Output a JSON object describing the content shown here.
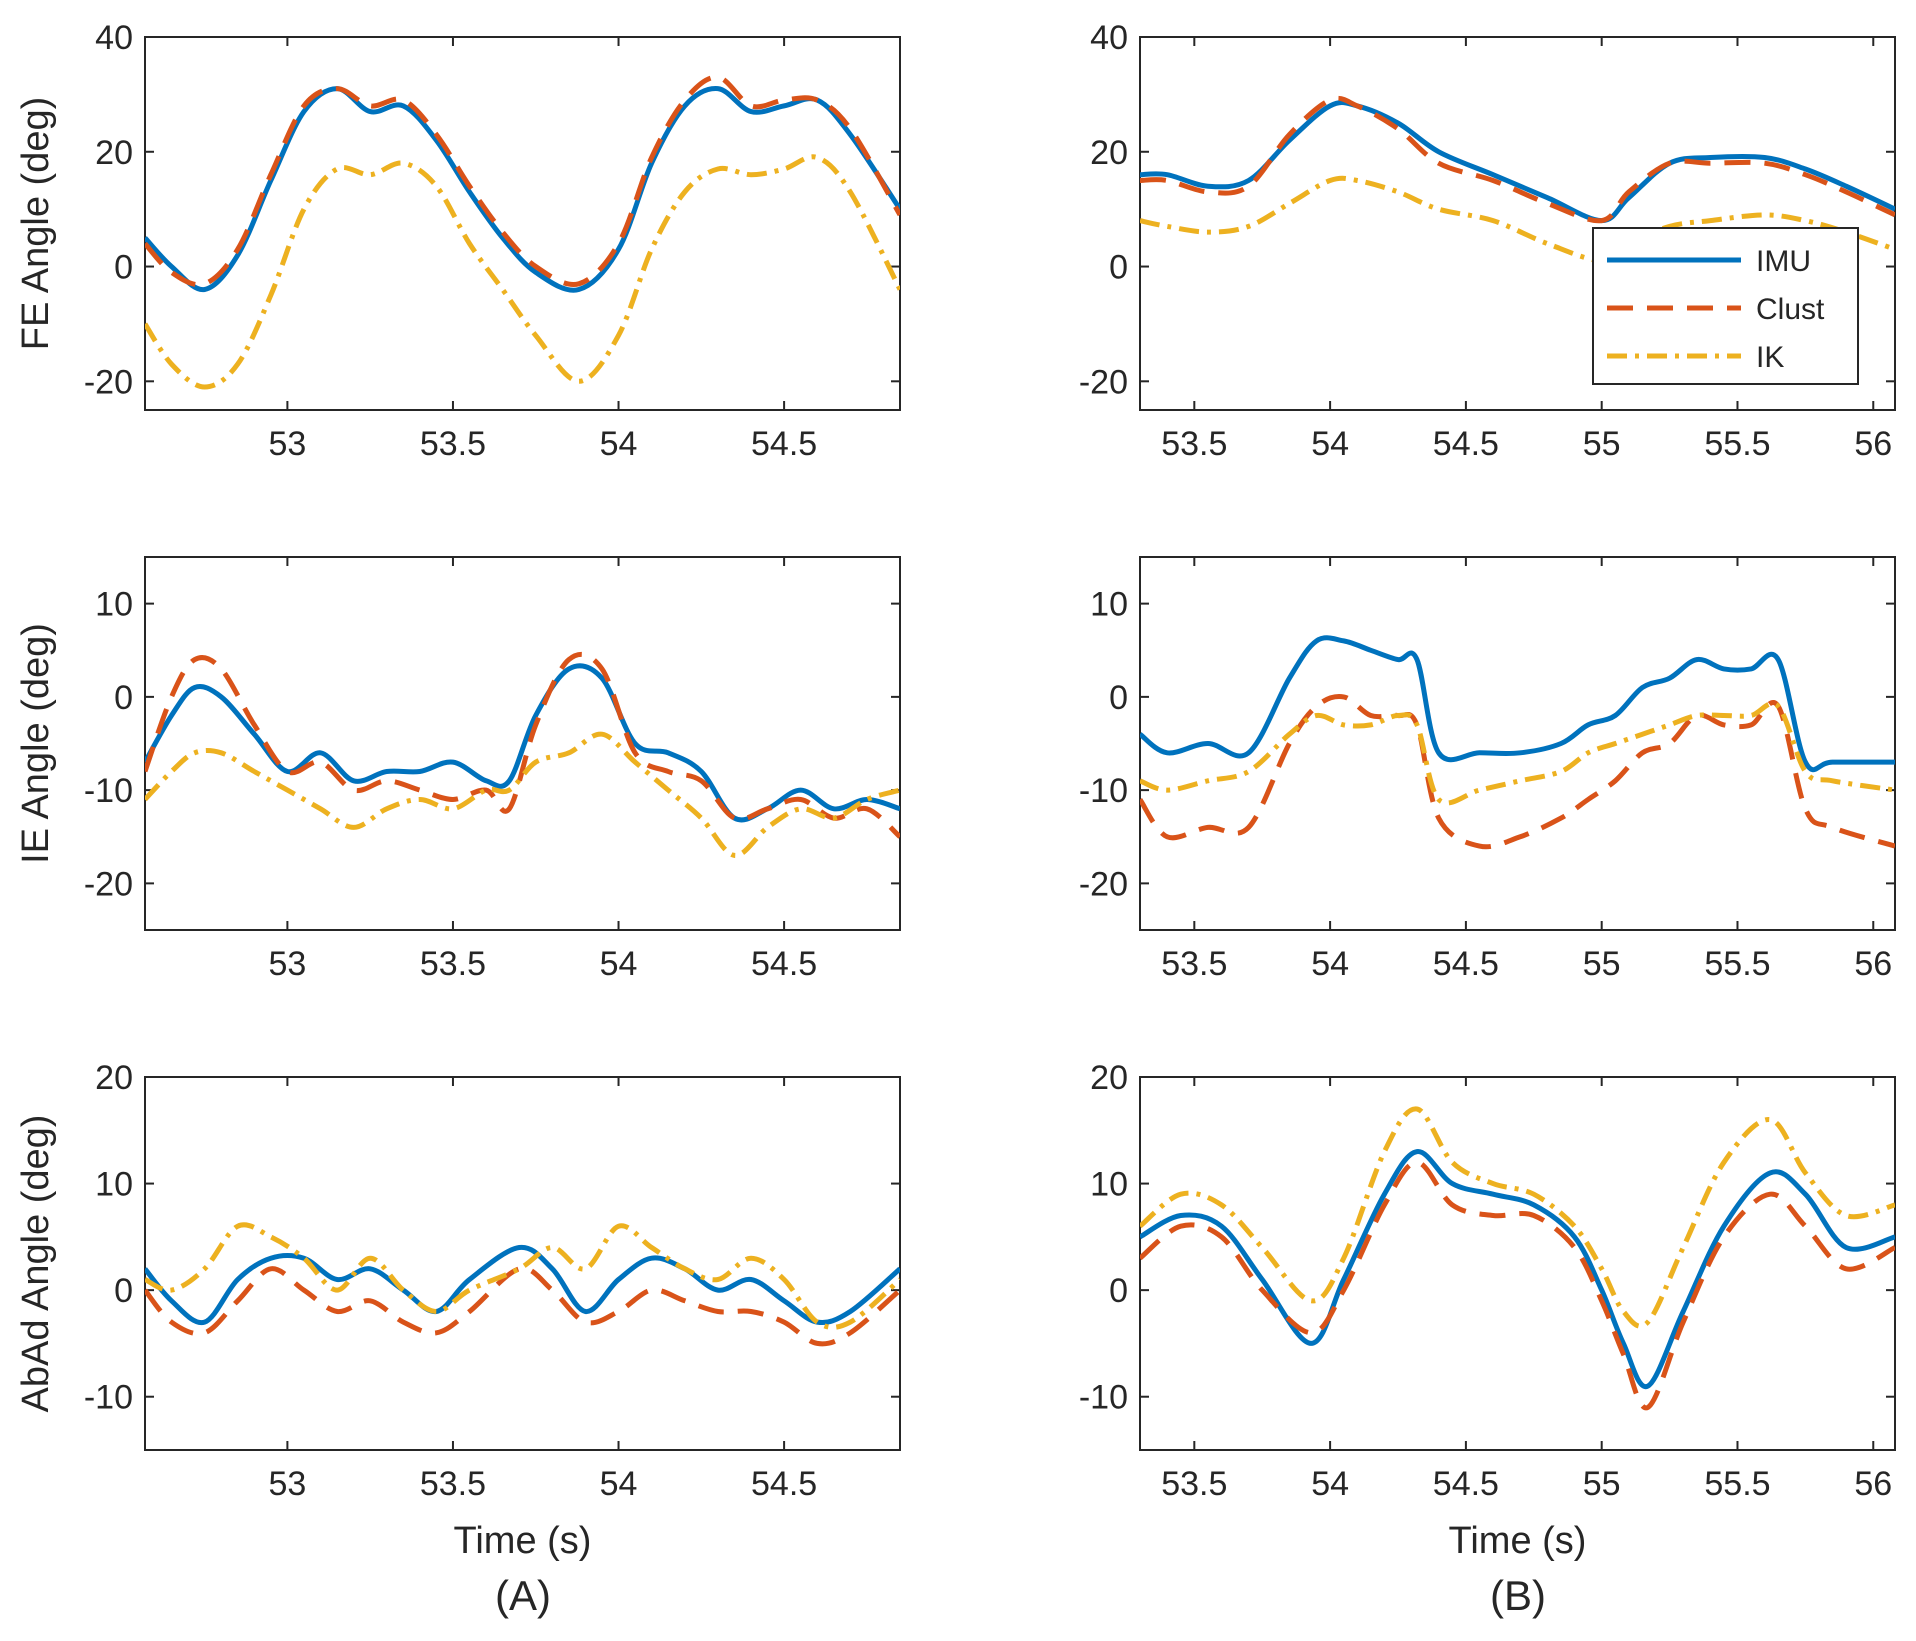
{
  "chart_data": [
    {
      "id": "A-FE",
      "type": "line",
      "panel": "(A)",
      "ylabel": "FE Angle (deg)",
      "xlabel": "",
      "xlim": [
        52.57,
        54.85
      ],
      "ylim": [
        -25,
        40
      ],
      "xticks": [
        53,
        53.5,
        54,
        54.5
      ],
      "yticks": [
        -20,
        0,
        20,
        40
      ],
      "series": [
        {
          "name": "IMU",
          "color": "#0072BD",
          "x": [
            52.57,
            52.65,
            52.75,
            52.85,
            52.95,
            53.05,
            53.15,
            53.25,
            53.35,
            53.45,
            53.55,
            53.65,
            53.75,
            53.88,
            54.0,
            54.1,
            54.2,
            54.3,
            54.4,
            54.5,
            54.6,
            54.7,
            54.85
          ],
          "y": [
            5,
            0,
            -4,
            2,
            15,
            27,
            31,
            27,
            28,
            22,
            13,
            5,
            -1,
            -4,
            3,
            18,
            28,
            31,
            27,
            28,
            29,
            23,
            10
          ]
        },
        {
          "name": "Clust",
          "color": "#D95319",
          "x": [
            52.57,
            52.65,
            52.75,
            52.85,
            52.95,
            53.05,
            53.15,
            53.25,
            53.35,
            53.45,
            53.55,
            53.65,
            53.75,
            53.88,
            54.0,
            54.1,
            54.2,
            54.3,
            54.4,
            54.5,
            54.6,
            54.7,
            54.85
          ],
          "y": [
            4,
            -1,
            -3,
            3,
            16,
            28,
            31,
            28,
            29,
            23,
            14,
            6,
            0,
            -3,
            4,
            19,
            29,
            33,
            28,
            29,
            29,
            24,
            9
          ]
        },
        {
          "name": "IK",
          "color": "#EDB120",
          "x": [
            52.57,
            52.65,
            52.75,
            52.85,
            52.95,
            53.05,
            53.15,
            53.25,
            53.35,
            53.45,
            53.55,
            53.65,
            53.75,
            53.88,
            54.0,
            54.1,
            54.2,
            54.3,
            54.4,
            54.5,
            54.6,
            54.7,
            54.85
          ],
          "y": [
            -10,
            -17,
            -21,
            -17,
            -5,
            10,
            17,
            16,
            18,
            14,
            4,
            -4,
            -12,
            -20,
            -12,
            3,
            13,
            17,
            16,
            17,
            19,
            13,
            -4
          ]
        }
      ]
    },
    {
      "id": "B-FE",
      "type": "line",
      "panel": "(B)",
      "ylabel": "",
      "xlabel": "",
      "xlim": [
        53.3,
        56.08
      ],
      "ylim": [
        -25,
        40
      ],
      "xticks": [
        53.5,
        54,
        54.5,
        55,
        55.5,
        56
      ],
      "yticks": [
        -20,
        0,
        20,
        40
      ],
      "legend": {
        "position": "right",
        "entries": [
          "IMU",
          "Clust",
          "IK"
        ]
      },
      "series": [
        {
          "name": "IMU",
          "color": "#0072BD",
          "x": [
            53.3,
            53.4,
            53.55,
            53.7,
            53.85,
            54.0,
            54.1,
            54.25,
            54.4,
            54.6,
            54.8,
            55.0,
            55.1,
            55.25,
            55.4,
            55.6,
            55.75,
            55.9,
            56.08
          ],
          "y": [
            16,
            16,
            14,
            15,
            22,
            28,
            28,
            25,
            20,
            16,
            12,
            8,
            12,
            18,
            19,
            19,
            17,
            14,
            10
          ]
        },
        {
          "name": "Clust",
          "color": "#D95319",
          "x": [
            53.3,
            53.4,
            53.55,
            53.7,
            53.85,
            54.0,
            54.1,
            54.25,
            54.4,
            54.6,
            54.8,
            55.0,
            55.1,
            55.25,
            55.4,
            55.6,
            55.75,
            55.9,
            56.08
          ],
          "y": [
            15,
            15,
            13,
            14,
            23,
            29,
            28,
            24,
            18,
            15,
            11,
            8,
            13,
            18,
            18,
            18,
            16,
            13,
            9
          ]
        },
        {
          "name": "IK",
          "color": "#EDB120",
          "x": [
            53.3,
            53.4,
            53.55,
            53.7,
            53.85,
            54.0,
            54.1,
            54.25,
            54.4,
            54.6,
            54.8,
            55.0,
            55.1,
            55.25,
            55.4,
            55.6,
            55.75,
            55.9,
            56.08
          ],
          "y": [
            8,
            7,
            6,
            7,
            11,
            15,
            15,
            13,
            10,
            8,
            4,
            1,
            4,
            7,
            8,
            9,
            8,
            6,
            3
          ]
        }
      ]
    },
    {
      "id": "A-IE",
      "type": "line",
      "panel": "(A)",
      "ylabel": "IE Angle (deg)",
      "xlabel": "",
      "xlim": [
        52.57,
        54.85
      ],
      "ylim": [
        -25,
        15
      ],
      "xticks": [
        53,
        53.5,
        54,
        54.5
      ],
      "yticks": [
        -20,
        -10,
        0,
        10
      ],
      "series": [
        {
          "name": "IMU",
          "color": "#0072BD",
          "x": [
            52.57,
            52.65,
            52.72,
            52.8,
            52.9,
            53.0,
            53.1,
            53.2,
            53.3,
            53.4,
            53.5,
            53.6,
            53.67,
            53.75,
            53.85,
            53.95,
            54.05,
            54.15,
            54.25,
            54.35,
            54.45,
            54.55,
            54.65,
            54.75,
            54.85
          ],
          "y": [
            -7,
            -2,
            1,
            0,
            -4,
            -8,
            -6,
            -9,
            -8,
            -8,
            -7,
            -9,
            -9,
            -2,
            3,
            2,
            -5,
            -6,
            -8,
            -13,
            -12,
            -10,
            -12,
            -11,
            -12
          ]
        },
        {
          "name": "Clust",
          "color": "#D95319",
          "x": [
            52.57,
            52.65,
            52.72,
            52.8,
            52.9,
            53.0,
            53.1,
            53.2,
            53.3,
            53.4,
            53.5,
            53.6,
            53.67,
            53.75,
            53.85,
            53.95,
            54.05,
            54.15,
            54.25,
            54.35,
            54.45,
            54.55,
            54.65,
            54.75,
            54.85
          ],
          "y": [
            -8,
            0,
            4,
            3,
            -3,
            -8,
            -7,
            -10,
            -9,
            -10,
            -11,
            -10,
            -12,
            -3,
            4,
            3,
            -6,
            -8,
            -9,
            -13,
            -12,
            -11,
            -13,
            -12,
            -15
          ]
        },
        {
          "name": "IK",
          "color": "#EDB120",
          "x": [
            52.57,
            52.65,
            52.72,
            52.8,
            52.9,
            53.0,
            53.1,
            53.2,
            53.3,
            53.4,
            53.5,
            53.6,
            53.67,
            53.75,
            53.85,
            53.95,
            54.05,
            54.15,
            54.25,
            54.35,
            54.45,
            54.55,
            54.65,
            54.75,
            54.85
          ],
          "y": [
            -11,
            -8,
            -6,
            -6,
            -8,
            -10,
            -12,
            -14,
            -12,
            -11,
            -12,
            -10,
            -10,
            -7,
            -6,
            -4,
            -7,
            -10,
            -13,
            -17,
            -14,
            -12,
            -13,
            -11,
            -10
          ]
        }
      ]
    },
    {
      "id": "B-IE",
      "type": "line",
      "panel": "(B)",
      "ylabel": "",
      "xlabel": "",
      "xlim": [
        53.3,
        56.08
      ],
      "ylim": [
        -25,
        15
      ],
      "xticks": [
        53.5,
        54,
        54.5,
        55,
        55.5,
        56
      ],
      "yticks": [
        -20,
        -10,
        0,
        10
      ],
      "series": [
        {
          "name": "IMU",
          "color": "#0072BD",
          "x": [
            53.3,
            53.4,
            53.55,
            53.7,
            53.85,
            53.95,
            54.05,
            54.15,
            54.25,
            54.32,
            54.4,
            54.55,
            54.7,
            54.85,
            54.95,
            55.05,
            55.15,
            55.25,
            55.35,
            55.45,
            55.55,
            55.65,
            55.75,
            55.85,
            56.08
          ],
          "y": [
            -4,
            -6,
            -5,
            -6,
            2,
            6,
            6,
            5,
            4,
            4,
            -6,
            -6,
            -6,
            -5,
            -3,
            -2,
            1,
            2,
            4,
            3,
            3,
            4,
            -7,
            -7,
            -7
          ]
        },
        {
          "name": "Clust",
          "color": "#D95319",
          "x": [
            53.3,
            53.4,
            53.55,
            53.7,
            53.85,
            53.95,
            54.05,
            54.15,
            54.25,
            54.32,
            54.4,
            54.55,
            54.7,
            54.85,
            54.95,
            55.05,
            55.15,
            55.25,
            55.35,
            55.45,
            55.55,
            55.65,
            55.75,
            55.85,
            56.08
          ],
          "y": [
            -11,
            -15,
            -14,
            -14,
            -5,
            -1,
            0,
            -2,
            -2,
            -3,
            -13,
            -16,
            -15,
            -13,
            -11,
            -9,
            -6,
            -5,
            -2,
            -3,
            -3,
            -1,
            -12,
            -14,
            -16
          ]
        },
        {
          "name": "IK",
          "color": "#EDB120",
          "x": [
            53.3,
            53.4,
            53.55,
            53.7,
            53.85,
            53.95,
            54.05,
            54.15,
            54.25,
            54.32,
            54.4,
            54.55,
            54.7,
            54.85,
            54.95,
            55.05,
            55.15,
            55.25,
            55.35,
            55.45,
            55.55,
            55.65,
            55.75,
            55.85,
            56.08
          ],
          "y": [
            -9,
            -10,
            -9,
            -8,
            -4,
            -2,
            -3,
            -3,
            -2,
            -3,
            -11,
            -10,
            -9,
            -8,
            -6,
            -5,
            -4,
            -3,
            -2,
            -2,
            -2,
            -1,
            -8,
            -9,
            -10
          ]
        }
      ]
    },
    {
      "id": "A-AbAd",
      "type": "line",
      "panel": "(A)",
      "ylabel": "AbAd Angle (deg)",
      "xlabel": "Time (s)",
      "xlim": [
        52.57,
        54.85
      ],
      "ylim": [
        -15,
        20
      ],
      "xticks": [
        53,
        53.5,
        54,
        54.5
      ],
      "yticks": [
        -10,
        0,
        10,
        20
      ],
      "series": [
        {
          "name": "IMU",
          "color": "#0072BD",
          "x": [
            52.57,
            52.65,
            52.75,
            52.85,
            52.95,
            53.05,
            53.15,
            53.25,
            53.35,
            53.45,
            53.55,
            53.7,
            53.8,
            53.9,
            54.0,
            54.1,
            54.2,
            54.3,
            54.4,
            54.5,
            54.6,
            54.7,
            54.85
          ],
          "y": [
            2,
            -1,
            -3,
            1,
            3,
            3,
            1,
            2,
            0,
            -2,
            1,
            4,
            2,
            -2,
            1,
            3,
            2,
            0,
            1,
            -1,
            -3,
            -2,
            2
          ]
        },
        {
          "name": "Clust",
          "color": "#D95319",
          "x": [
            52.57,
            52.65,
            52.75,
            52.85,
            52.95,
            53.05,
            53.15,
            53.25,
            53.35,
            53.45,
            53.55,
            53.7,
            53.8,
            53.9,
            54.0,
            54.1,
            54.2,
            54.3,
            54.4,
            54.5,
            54.6,
            54.7,
            54.85
          ],
          "y": [
            0,
            -3,
            -4,
            -1,
            2,
            0,
            -2,
            -1,
            -3,
            -4,
            -2,
            2,
            0,
            -3,
            -2,
            0,
            -1,
            -2,
            -2,
            -3,
            -5,
            -4,
            0
          ]
        },
        {
          "name": "IK",
          "color": "#EDB120",
          "x": [
            52.57,
            52.65,
            52.75,
            52.85,
            52.95,
            53.05,
            53.15,
            53.25,
            53.35,
            53.45,
            53.55,
            53.7,
            53.8,
            53.9,
            54.0,
            54.1,
            54.2,
            54.3,
            54.4,
            54.5,
            54.6,
            54.7,
            54.85
          ],
          "y": [
            1,
            0,
            2,
            6,
            5,
            3,
            0,
            3,
            0,
            -2,
            0,
            2,
            4,
            2,
            6,
            4,
            2,
            1,
            3,
            1,
            -3,
            -3,
            1
          ]
        }
      ]
    },
    {
      "id": "B-AbAd",
      "type": "line",
      "panel": "(B)",
      "ylabel": "",
      "xlabel": "Time (s)",
      "xlim": [
        53.3,
        56.08
      ],
      "ylim": [
        -15,
        20
      ],
      "xticks": [
        53.5,
        54,
        54.5,
        55,
        55.5,
        56
      ],
      "yticks": [
        -10,
        0,
        10,
        20
      ],
      "series": [
        {
          "name": "IMU",
          "color": "#0072BD",
          "x": [
            53.3,
            53.45,
            53.6,
            53.75,
            53.93,
            54.05,
            54.2,
            54.32,
            54.45,
            54.6,
            54.75,
            54.9,
            55.0,
            55.08,
            55.17,
            55.3,
            55.45,
            55.62,
            55.75,
            55.9,
            56.08
          ],
          "y": [
            5,
            7,
            6,
            1,
            -5,
            1,
            9,
            13,
            10,
            9,
            8,
            5,
            0,
            -5,
            -9,
            -2,
            6,
            11,
            9,
            4,
            5
          ]
        },
        {
          "name": "Clust",
          "color": "#D95319",
          "x": [
            53.3,
            53.45,
            53.6,
            53.75,
            53.93,
            54.05,
            54.2,
            54.32,
            54.45,
            54.6,
            54.75,
            54.9,
            55.0,
            55.08,
            55.17,
            55.3,
            55.45,
            55.62,
            55.75,
            55.9,
            56.08
          ],
          "y": [
            3,
            6,
            5,
            0,
            -4,
            0,
            8,
            12,
            8,
            7,
            7,
            4,
            -1,
            -6,
            -11,
            -3,
            5,
            9,
            6,
            2,
            4
          ]
        },
        {
          "name": "IK",
          "color": "#EDB120",
          "x": [
            53.3,
            53.45,
            53.6,
            53.75,
            53.93,
            54.05,
            54.2,
            54.32,
            54.45,
            54.6,
            54.75,
            54.9,
            55.0,
            55.08,
            55.17,
            55.3,
            55.45,
            55.62,
            55.75,
            55.9,
            56.08
          ],
          "y": [
            6,
            9,
            8,
            4,
            -1,
            3,
            13,
            17,
            12,
            10,
            9,
            6,
            2,
            -2,
            -3,
            4,
            12,
            16,
            11,
            7,
            8
          ]
        }
      ]
    }
  ],
  "panel_labels": {
    "left": "(A)",
    "right": "(B)"
  }
}
